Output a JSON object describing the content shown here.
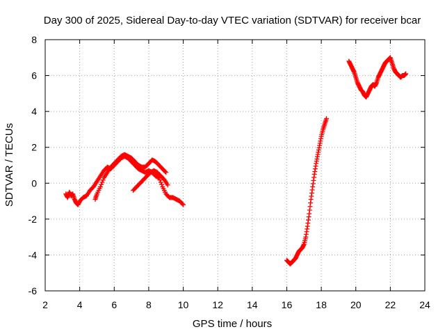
{
  "chart_data": {
    "type": "scatter",
    "title": "Day 300 of 2025, Sidereal Day-to-day VTEC variation (SDTVAR) for receiver bcar",
    "xlabel": "GPS time / hours",
    "ylabel": "SDTVAR / TECUs",
    "xlim": [
      2,
      24
    ],
    "ylim": [
      -6,
      8
    ],
    "xticks": [
      "2",
      "4",
      "6",
      "8",
      "10",
      "12",
      "14",
      "16",
      "18",
      "20",
      "22",
      "24"
    ],
    "yticks": [
      "-6",
      "-4",
      "-2",
      "0",
      "2",
      "4",
      "6",
      "8"
    ],
    "grid": true,
    "marker": "plus",
    "color": "#ff0000",
    "series": [
      {
        "name": "segment-1",
        "x": [
          3.2,
          3.3,
          3.4,
          3.5,
          3.6,
          3.7,
          3.8,
          3.9,
          4.0,
          4.2,
          4.4,
          4.6,
          4.8,
          5.0,
          5.2,
          5.4,
          5.6,
          5.8,
          6.0,
          6.2,
          6.4,
          6.6,
          6.8,
          7.0,
          7.2,
          7.4,
          7.6,
          7.8,
          8.0,
          8.2,
          8.4,
          8.6,
          8.8,
          9.0,
          9.2,
          9.4,
          9.6,
          9.8,
          10.0
        ],
        "y": [
          -0.6,
          -0.8,
          -0.5,
          -0.7,
          -0.6,
          -0.9,
          -1.1,
          -1.2,
          -1.0,
          -0.8,
          -0.7,
          -0.4,
          -0.2,
          0.1,
          0.4,
          0.7,
          0.9,
          0.8,
          1.0,
          1.2,
          1.4,
          1.5,
          1.4,
          1.2,
          1.0,
          0.8,
          0.7,
          0.6,
          0.7,
          0.6,
          0.4,
          0.3,
          -0.2,
          -0.6,
          -0.8,
          -0.8,
          -0.9,
          -1.0,
          -1.2
        ]
      },
      {
        "name": "segment-2",
        "x": [
          4.9,
          5.0,
          5.2,
          5.4,
          5.6,
          5.8,
          6.0,
          6.2,
          6.4,
          6.6,
          6.8,
          7.0,
          7.2,
          7.4,
          7.6,
          7.8,
          8.0,
          8.2,
          8.4,
          8.6,
          8.8,
          9.0
        ],
        "y": [
          -0.9,
          -0.6,
          -0.2,
          0.3,
          0.6,
          0.9,
          1.1,
          1.3,
          1.5,
          1.6,
          1.5,
          1.4,
          1.2,
          1.0,
          0.9,
          0.9,
          1.1,
          1.3,
          1.2,
          1.0,
          0.8,
          0.6
        ]
      },
      {
        "name": "segment-3",
        "x": [
          7.1,
          7.3,
          7.5,
          7.7,
          7.9,
          8.1,
          8.3,
          8.5,
          8.7,
          8.9,
          9.1
        ],
        "y": [
          -0.4,
          -0.2,
          0.0,
          0.2,
          0.4,
          0.6,
          0.7,
          0.6,
          0.4,
          0.2,
          -0.1
        ]
      },
      {
        "name": "segment-4",
        "x": [
          16.0,
          16.1,
          16.2,
          16.3,
          16.4,
          16.5,
          16.6,
          16.7,
          16.8,
          16.9,
          17.0,
          17.1,
          17.2,
          17.3,
          17.4,
          17.5,
          17.6,
          17.7,
          17.8,
          17.9,
          18.0,
          18.1,
          18.2,
          18.3
        ],
        "y": [
          -4.3,
          -4.4,
          -4.5,
          -4.4,
          -4.3,
          -4.2,
          -4.0,
          -3.8,
          -3.7,
          -3.6,
          -3.4,
          -3.0,
          -2.4,
          -1.7,
          -0.9,
          -0.2,
          0.5,
          1.1,
          1.6,
          2.1,
          2.6,
          3.0,
          3.3,
          3.6
        ]
      },
      {
        "name": "segment-5",
        "x": [
          19.6,
          19.7,
          19.8,
          19.9,
          20.0,
          20.1,
          20.2,
          20.3,
          20.4,
          20.5,
          20.6,
          20.7,
          20.8,
          20.9,
          21.0,
          21.1,
          21.2,
          21.3,
          21.4,
          21.5,
          21.6,
          21.7,
          21.8,
          21.9,
          22.0,
          22.1,
          22.2,
          22.3,
          22.4,
          22.5,
          22.6,
          22.7,
          22.8,
          22.9
        ],
        "y": [
          6.8,
          6.6,
          6.4,
          6.2,
          5.9,
          5.6,
          5.4,
          5.2,
          5.1,
          4.9,
          4.8,
          5.0,
          5.2,
          5.4,
          5.5,
          5.4,
          5.6,
          5.9,
          6.1,
          6.3,
          6.5,
          6.7,
          6.8,
          6.9,
          7.0,
          6.7,
          6.4,
          6.2,
          6.1,
          6.0,
          5.9,
          6.0,
          6.0,
          6.1
        ]
      }
    ]
  }
}
